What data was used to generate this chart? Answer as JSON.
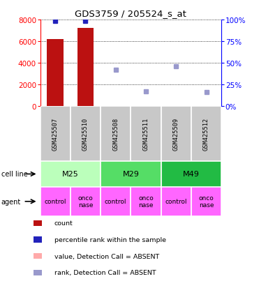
{
  "title": "GDS3759 / 205524_s_at",
  "samples": [
    "GSM425507",
    "GSM425510",
    "GSM425508",
    "GSM425511",
    "GSM425509",
    "GSM425512"
  ],
  "bar_values": [
    6200,
    7200,
    0,
    0,
    0,
    0
  ],
  "bar_absent_small": 30,
  "perc_present": [
    98,
    98,
    0,
    0,
    0,
    0
  ],
  "perc_absent": [
    0,
    0,
    42,
    17,
    46,
    16
  ],
  "bar_color": "#bb1111",
  "bar_absent_color": "#ffaaaa",
  "dot_present_color": "#2222bb",
  "dot_absent_color": "#9999cc",
  "gsm_bg": "#c8c8c8",
  "cell_lines": [
    [
      "M25",
      0,
      2
    ],
    [
      "M29",
      2,
      4
    ],
    [
      "M49",
      4,
      6
    ]
  ],
  "cell_colors": [
    "#bbffbb",
    "#55dd66",
    "#22bb44"
  ],
  "agents": [
    "control",
    "onco\nnase",
    "control",
    "onco\nnase",
    "control",
    "onco\nnase"
  ],
  "agent_color": "#ff66ff",
  "legend": [
    {
      "label": "count",
      "color": "#bb1111"
    },
    {
      "label": "percentile rank within the sample",
      "color": "#2222bb"
    },
    {
      "label": "value, Detection Call = ABSENT",
      "color": "#ffaaaa"
    },
    {
      "label": "rank, Detection Call = ABSENT",
      "color": "#9999cc"
    }
  ]
}
